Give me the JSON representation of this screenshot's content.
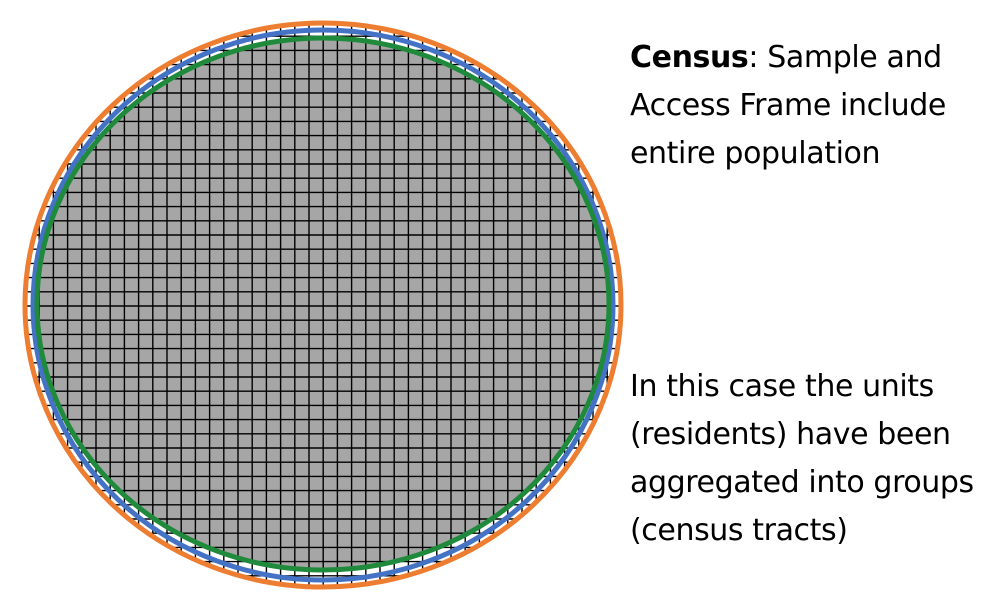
{
  "captions": {
    "census": {
      "term": "Census",
      "rest": ": Sample and Access Frame include entire population"
    },
    "note": {
      "text": "In this case the units (residents) have been aggregated into groups (census tracts)"
    }
  },
  "colors": {
    "population_ring": "#ED7D31",
    "access_frame_ring": "#4472C4",
    "sample_ring": "#1F8A3C",
    "sample_fill": "#A6A6A6",
    "grid_lines": "#000000",
    "background": "#FFFFFF"
  }
}
